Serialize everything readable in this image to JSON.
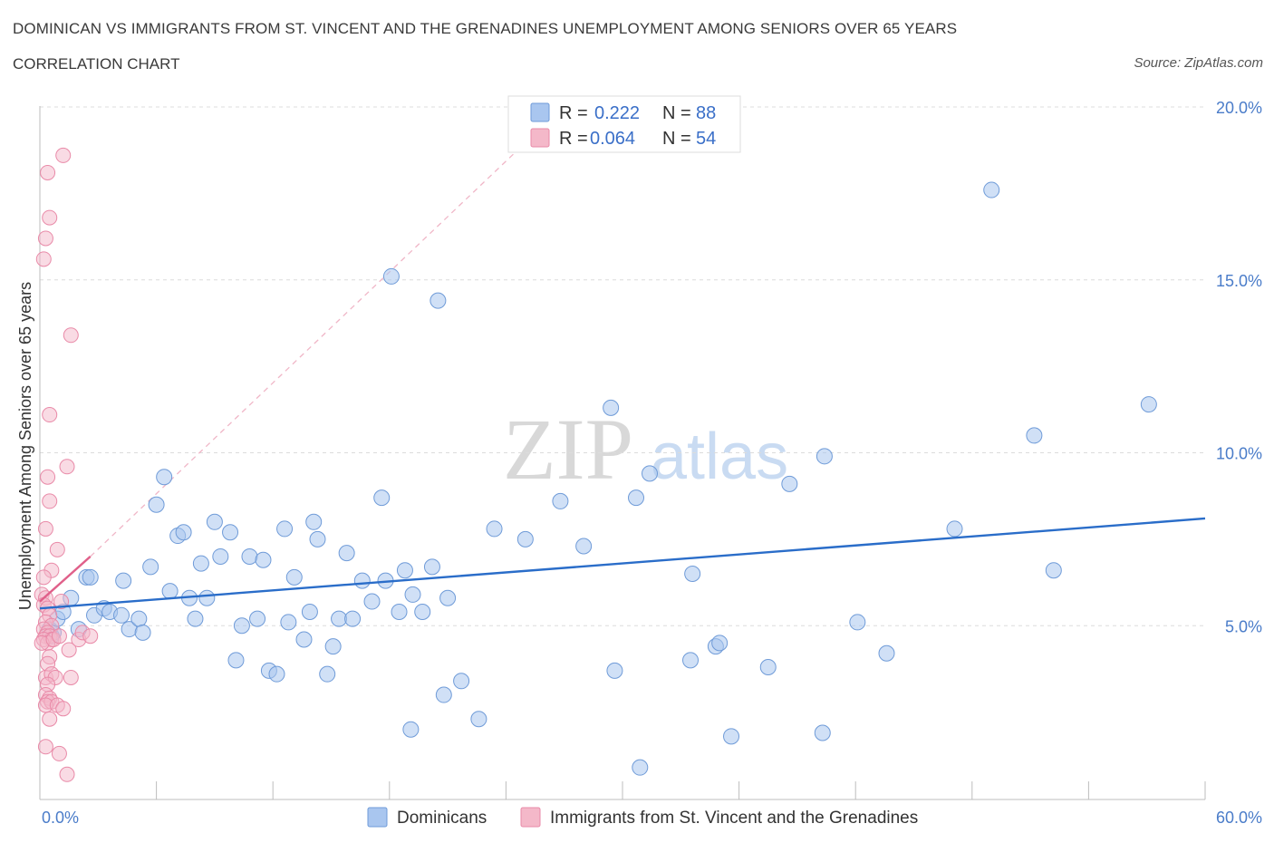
{
  "header": {
    "title": "DOMINICAN VS IMMIGRANTS FROM ST. VINCENT AND THE GRENADINES UNEMPLOYMENT AMONG SENIORS OVER 65 YEARS",
    "subtitle": "CORRELATION CHART",
    "source": "Source: ZipAtlas.com"
  },
  "watermark": {
    "zip": "ZIP",
    "atlas": "atlas"
  },
  "legend_box": {
    "rows": [
      {
        "r_label": "R =",
        "r_value": "0.222",
        "n_label": "N =",
        "n_value": "88",
        "color": "#a9c6ef"
      },
      {
        "r_label": "R =",
        "r_value": "0.064",
        "n_label": "N =",
        "n_value": "54",
        "color": "#f4b8c9"
      }
    ]
  },
  "bottom_legend": {
    "items": [
      {
        "label": "Dominicans",
        "color": "#a9c6ef"
      },
      {
        "label": "Immigrants from St. Vincent and the Grenadines",
        "color": "#f4b8c9"
      }
    ]
  },
  "chart_data": {
    "type": "scatter",
    "xlabel": "",
    "ylabel": "Unemployment Among Seniors over 65 years",
    "xlim": [
      0,
      60
    ],
    "ylim": [
      0,
      20
    ],
    "x_tick_labels": [
      {
        "value": 0,
        "label": "0.0%"
      },
      {
        "value": 60,
        "label": "60.0%"
      }
    ],
    "y_tick_labels": [
      {
        "value": 5,
        "label": "5.0%"
      },
      {
        "value": 10,
        "label": "10.0%"
      },
      {
        "value": 15,
        "label": "15.0%"
      },
      {
        "value": 20,
        "label": "20.0%"
      }
    ],
    "grid": true,
    "colors": {
      "blue_fill": "#a9c6ef",
      "blue_stroke": "#6f9bd8",
      "blue_line": "#2a6dc9",
      "pink_fill": "#f4b8c9",
      "pink_stroke": "#e98aa8",
      "pink_line": "#e0608a"
    },
    "series": [
      {
        "name": "Dominicans",
        "color": "#a9c6ef",
        "trend": {
          "x": [
            0,
            60
          ],
          "y": [
            5.5,
            8.1
          ]
        },
        "points": [
          [
            0.5,
            4.9
          ],
          [
            0.6,
            4.7
          ],
          [
            0.7,
            4.8
          ],
          [
            0.9,
            5.2
          ],
          [
            1.2,
            5.4
          ],
          [
            1.6,
            5.8
          ],
          [
            2.0,
            4.9
          ],
          [
            2.4,
            6.4
          ],
          [
            2.6,
            6.4
          ],
          [
            2.8,
            5.3
          ],
          [
            3.3,
            5.5
          ],
          [
            3.6,
            5.4
          ],
          [
            4.2,
            5.3
          ],
          [
            4.3,
            6.3
          ],
          [
            4.6,
            4.9
          ],
          [
            5.1,
            5.2
          ],
          [
            5.3,
            4.8
          ],
          [
            5.7,
            6.7
          ],
          [
            6.0,
            8.5
          ],
          [
            6.4,
            9.3
          ],
          [
            6.7,
            6.0
          ],
          [
            7.1,
            7.6
          ],
          [
            7.4,
            7.7
          ],
          [
            7.7,
            5.8
          ],
          [
            8.0,
            5.2
          ],
          [
            8.3,
            6.8
          ],
          [
            8.6,
            5.8
          ],
          [
            9.0,
            8.0
          ],
          [
            9.3,
            7.0
          ],
          [
            9.8,
            7.7
          ],
          [
            10.1,
            4.0
          ],
          [
            10.4,
            5.0
          ],
          [
            10.8,
            7.0
          ],
          [
            11.2,
            5.2
          ],
          [
            11.5,
            6.9
          ],
          [
            11.8,
            3.7
          ],
          [
            12.2,
            3.6
          ],
          [
            12.6,
            7.8
          ],
          [
            12.8,
            5.1
          ],
          [
            13.1,
            6.4
          ],
          [
            13.6,
            4.6
          ],
          [
            13.9,
            5.4
          ],
          [
            14.1,
            8.0
          ],
          [
            14.3,
            7.5
          ],
          [
            14.8,
            3.6
          ],
          [
            15.1,
            4.4
          ],
          [
            15.4,
            5.2
          ],
          [
            15.8,
            7.1
          ],
          [
            16.1,
            5.2
          ],
          [
            16.6,
            6.3
          ],
          [
            17.1,
            5.7
          ],
          [
            17.6,
            8.7
          ],
          [
            17.8,
            6.3
          ],
          [
            18.1,
            15.1
          ],
          [
            18.5,
            5.4
          ],
          [
            18.8,
            6.6
          ],
          [
            19.1,
            2.0
          ],
          [
            19.2,
            5.9
          ],
          [
            19.7,
            5.4
          ],
          [
            20.2,
            6.7
          ],
          [
            20.5,
            14.4
          ],
          [
            20.8,
            3.0
          ],
          [
            21.0,
            5.8
          ],
          [
            21.7,
            3.4
          ],
          [
            22.6,
            2.3
          ],
          [
            23.4,
            7.8
          ],
          [
            25.0,
            7.5
          ],
          [
            26.8,
            8.6
          ],
          [
            28.0,
            7.3
          ],
          [
            29.4,
            11.3
          ],
          [
            29.6,
            3.7
          ],
          [
            30.7,
            8.7
          ],
          [
            30.9,
            0.9
          ],
          [
            31.4,
            9.4
          ],
          [
            33.5,
            4.0
          ],
          [
            33.6,
            6.5
          ],
          [
            34.8,
            4.4
          ],
          [
            35.0,
            4.5
          ],
          [
            35.6,
            1.8
          ],
          [
            37.5,
            3.8
          ],
          [
            38.6,
            9.1
          ],
          [
            40.3,
            1.9
          ],
          [
            40.4,
            9.9
          ],
          [
            42.1,
            5.1
          ],
          [
            43.6,
            4.2
          ],
          [
            47.1,
            7.8
          ],
          [
            49.0,
            17.6
          ],
          [
            51.2,
            10.5
          ],
          [
            52.2,
            6.6
          ],
          [
            57.1,
            11.4
          ]
        ]
      },
      {
        "name": "Immigrants from St. Vincent and the Grenadines",
        "color": "#f4b8c9",
        "trend": {
          "x": [
            0,
            2.6
          ],
          "y": [
            5.7,
            7.0
          ]
        },
        "trend_extension": {
          "x": [
            2.6,
            26.0
          ],
          "y": [
            7.0,
            19.5
          ]
        },
        "points": [
          [
            0.2,
            15.6
          ],
          [
            0.3,
            16.2
          ],
          [
            0.4,
            18.1
          ],
          [
            0.5,
            16.8
          ],
          [
            1.2,
            18.6
          ],
          [
            1.6,
            13.4
          ],
          [
            0.5,
            11.1
          ],
          [
            1.4,
            9.6
          ],
          [
            0.4,
            9.3
          ],
          [
            0.5,
            8.6
          ],
          [
            0.3,
            7.8
          ],
          [
            0.9,
            7.2
          ],
          [
            0.6,
            6.6
          ],
          [
            0.2,
            6.4
          ],
          [
            0.1,
            5.9
          ],
          [
            0.3,
            5.8
          ],
          [
            0.2,
            5.6
          ],
          [
            0.4,
            5.5
          ],
          [
            0.5,
            5.3
          ],
          [
            0.3,
            5.1
          ],
          [
            0.6,
            5.0
          ],
          [
            0.2,
            4.9
          ],
          [
            0.4,
            4.8
          ],
          [
            0.3,
            4.7
          ],
          [
            0.5,
            4.7
          ],
          [
            0.6,
            4.6
          ],
          [
            0.2,
            4.6
          ],
          [
            0.4,
            4.5
          ],
          [
            0.1,
            4.5
          ],
          [
            0.7,
            4.6
          ],
          [
            1.0,
            4.7
          ],
          [
            1.5,
            4.3
          ],
          [
            2.0,
            4.6
          ],
          [
            0.5,
            4.1
          ],
          [
            0.4,
            3.9
          ],
          [
            0.3,
            3.5
          ],
          [
            0.6,
            3.6
          ],
          [
            0.8,
            3.5
          ],
          [
            1.6,
            3.5
          ],
          [
            0.4,
            3.3
          ],
          [
            0.3,
            3.0
          ],
          [
            0.5,
            2.9
          ],
          [
            0.4,
            2.8
          ],
          [
            0.6,
            2.8
          ],
          [
            0.3,
            2.7
          ],
          [
            0.9,
            2.7
          ],
          [
            1.2,
            2.6
          ],
          [
            0.5,
            2.3
          ],
          [
            0.3,
            1.5
          ],
          [
            1.0,
            1.3
          ],
          [
            1.4,
            0.7
          ],
          [
            2.2,
            4.8
          ],
          [
            2.6,
            4.7
          ],
          [
            1.1,
            5.7
          ]
        ]
      }
    ]
  }
}
